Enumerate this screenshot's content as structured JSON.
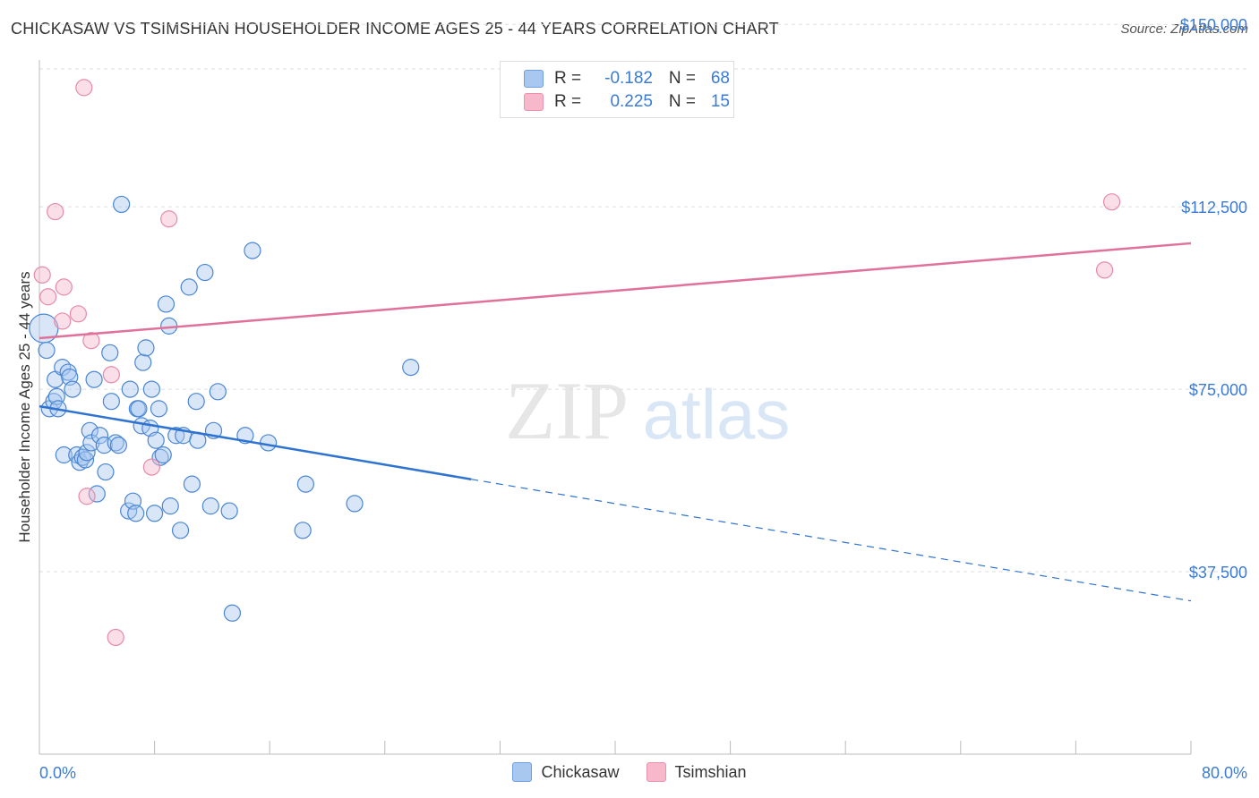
{
  "title": "CHICKASAW VS TSIMSHIAN HOUSEHOLDER INCOME AGES 25 - 44 YEARS CORRELATION CHART",
  "source": "Source: ZipAtlas.com",
  "watermark": {
    "zip": "ZIP",
    "atlas": "atlas"
  },
  "legend": {
    "rows": [
      {
        "r_label": "R =",
        "r_value": "-0.182",
        "n_label": "N =",
        "n_value": "68",
        "color": "#a9c8f0"
      },
      {
        "r_label": "R =",
        "r_value": "0.225",
        "n_label": "N =",
        "n_value": "15",
        "color": "#f7b8cb"
      }
    ]
  },
  "bottom_legend": [
    {
      "label": "Chickasaw",
      "color": "#a9c8f0"
    },
    {
      "label": "Tsimshian",
      "color": "#f7b8cb"
    }
  ],
  "colors": {
    "chickasaw_fill": "rgba(169,200,240,0.45)",
    "chickasaw_stroke": "#4a86d4",
    "chickasaw_line": "#2f73d0",
    "tsimshian_fill": "rgba(247,184,203,0.45)",
    "tsimshian_stroke": "#e58aa8",
    "tsimshian_line": "#e0719a",
    "axis_label": "#3a7bd5",
    "grid": "#dddddd"
  },
  "chart_data": {
    "type": "scatter",
    "title": "CHICKASAW VS TSIMSHIAN HOUSEHOLDER INCOME AGES 25 - 44 YEARS CORRELATION CHART",
    "xlabel": "",
    "ylabel": "Householder Income Ages 25 - 44 years",
    "xlim": [
      0,
      80
    ],
    "ylim": [
      0,
      155000
    ],
    "x_tick_labels": [
      "0.0%",
      "80.0%"
    ],
    "y_ticks": [
      37500,
      75000,
      112500,
      150000
    ],
    "y_tick_labels": [
      "$37,500",
      "$75,000",
      "$112,500",
      "$150,000"
    ],
    "grid": true,
    "legend_position": "top-center",
    "series": [
      {
        "name": "Chickasaw",
        "points": [
          [
            0.3,
            87500
          ],
          [
            0.5,
            83000
          ],
          [
            0.7,
            71000
          ],
          [
            1.0,
            72500
          ],
          [
            1.1,
            77000
          ],
          [
            1.2,
            73500
          ],
          [
            1.3,
            71000
          ],
          [
            1.6,
            79500
          ],
          [
            1.7,
            61500
          ],
          [
            2.0,
            78500
          ],
          [
            2.1,
            77500
          ],
          [
            2.3,
            75000
          ],
          [
            2.6,
            61500
          ],
          [
            2.8,
            60000
          ],
          [
            3.0,
            61000
          ],
          [
            3.2,
            60500
          ],
          [
            3.3,
            62000
          ],
          [
            3.5,
            66500
          ],
          [
            3.6,
            64000
          ],
          [
            3.8,
            77000
          ],
          [
            4.0,
            53500
          ],
          [
            4.2,
            65500
          ],
          [
            4.5,
            63500
          ],
          [
            4.6,
            58000
          ],
          [
            4.9,
            82500
          ],
          [
            5.0,
            72500
          ],
          [
            5.3,
            64000
          ],
          [
            5.5,
            63500
          ],
          [
            5.7,
            113000
          ],
          [
            6.2,
            50000
          ],
          [
            6.3,
            75000
          ],
          [
            6.5,
            52000
          ],
          [
            6.7,
            49500
          ],
          [
            6.8,
            71000
          ],
          [
            6.9,
            71000
          ],
          [
            7.1,
            67500
          ],
          [
            7.2,
            80500
          ],
          [
            7.4,
            83500
          ],
          [
            7.7,
            67000
          ],
          [
            7.8,
            75000
          ],
          [
            8.0,
            49500
          ],
          [
            8.1,
            64500
          ],
          [
            8.3,
            71000
          ],
          [
            8.4,
            61000
          ],
          [
            8.6,
            61500
          ],
          [
            8.8,
            92500
          ],
          [
            9.0,
            88000
          ],
          [
            9.1,
            51000
          ],
          [
            9.5,
            65500
          ],
          [
            9.8,
            46000
          ],
          [
            10.0,
            65500
          ],
          [
            10.4,
            96000
          ],
          [
            10.6,
            55500
          ],
          [
            10.9,
            72500
          ],
          [
            11.0,
            64500
          ],
          [
            11.5,
            99000
          ],
          [
            11.9,
            51000
          ],
          [
            12.1,
            66500
          ],
          [
            12.4,
            74500
          ],
          [
            13.2,
            50000
          ],
          [
            13.4,
            29000
          ],
          [
            14.3,
            65500
          ],
          [
            14.8,
            103500
          ],
          [
            15.9,
            64000
          ],
          [
            18.5,
            55500
          ],
          [
            18.3,
            46000
          ],
          [
            21.9,
            51500
          ],
          [
            25.8,
            79500
          ]
        ]
      },
      {
        "name": "Tsimshian",
        "points": [
          [
            0.2,
            98500
          ],
          [
            0.6,
            94000
          ],
          [
            1.1,
            111500
          ],
          [
            1.6,
            89000
          ],
          [
            1.7,
            96000
          ],
          [
            2.7,
            90500
          ],
          [
            3.1,
            137000
          ],
          [
            3.3,
            53000
          ],
          [
            3.6,
            85000
          ],
          [
            5.0,
            78000
          ],
          [
            5.3,
            24000
          ],
          [
            7.8,
            59000
          ],
          [
            9.0,
            110000
          ],
          [
            74.5,
            113500
          ],
          [
            74.0,
            99500
          ]
        ]
      }
    ],
    "trend_lines": [
      {
        "series": "Chickasaw",
        "solid": [
          [
            0,
            71500
          ],
          [
            30,
            56500
          ]
        ],
        "dashed": [
          [
            30,
            56500
          ],
          [
            80,
            31500
          ]
        ]
      },
      {
        "series": "Tsimshian",
        "solid": [
          [
            0,
            85500
          ],
          [
            80,
            105000
          ]
        ]
      }
    ]
  }
}
